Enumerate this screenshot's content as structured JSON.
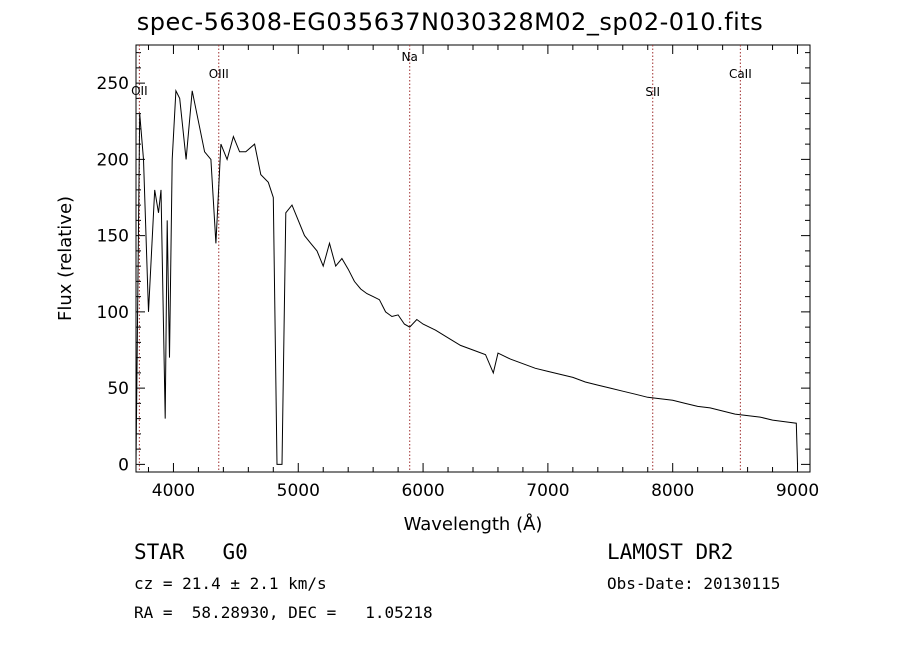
{
  "chart_data": {
    "type": "line",
    "title": "spec-56308-EG035637N030328M02_sp02-010.fits",
    "xlabel": "Wavelength (Å)",
    "ylabel": "Flux (relative)",
    "xlim": [
      3700,
      9100
    ],
    "ylim": [
      -5,
      275
    ],
    "x_ticks": [
      "4000",
      "5000",
      "6000",
      "7000",
      "8000",
      "9000"
    ],
    "y_ticks": [
      "0",
      "50",
      "100",
      "150",
      "200",
      "250"
    ],
    "grid": false,
    "lines": [
      {
        "label": "OII",
        "x": 3727
      },
      {
        "label": "OIII",
        "x": 4363
      },
      {
        "label": "Na",
        "x": 5893
      },
      {
        "label": "SII",
        "x": 7840
      },
      {
        "label": "CaII",
        "x": 8542
      }
    ],
    "series": [
      {
        "x": [
          3700,
          3730,
          3760,
          3800,
          3850,
          3880,
          3900,
          3934,
          3950,
          3968,
          3990,
          4020,
          4050,
          4101,
          4150,
          4200,
          4250,
          4300,
          4340,
          4380,
          4430,
          4480,
          4530,
          4580,
          4650,
          4700,
          4760,
          4800,
          4830,
          4861,
          4870,
          4900,
          4950,
          5000,
          5050,
          5100,
          5150,
          5200,
          5250,
          5300,
          5350,
          5400,
          5450,
          5500,
          5550,
          5600,
          5650,
          5700,
          5750,
          5800,
          5850,
          5893,
          5950,
          6000,
          6100,
          6200,
          6300,
          6400,
          6500,
          6563,
          6600,
          6700,
          6800,
          6900,
          7000,
          7100,
          7200,
          7300,
          7400,
          7500,
          7600,
          7700,
          7800,
          7900,
          8000,
          8100,
          8200,
          8300,
          8400,
          8500,
          8600,
          8700,
          8800,
          8900,
          8990,
          9000
        ],
        "y": [
          0,
          230,
          200,
          100,
          180,
          165,
          180,
          30,
          160,
          70,
          200,
          245,
          240,
          200,
          245,
          225,
          205,
          200,
          145,
          210,
          200,
          215,
          205,
          205,
          210,
          190,
          185,
          175,
          0,
          0,
          0,
          165,
          170,
          160,
          150,
          145,
          140,
          130,
          145,
          130,
          135,
          128,
          120,
          115,
          112,
          110,
          108,
          100,
          97,
          98,
          92,
          90,
          95,
          92,
          88,
          83,
          78,
          75,
          72,
          60,
          73,
          69,
          66,
          63,
          61,
          59,
          57,
          54,
          52,
          50,
          48,
          46,
          44,
          43,
          42,
          40,
          38,
          37,
          35,
          33,
          32,
          31,
          29,
          28,
          27,
          0
        ]
      }
    ]
  },
  "info": {
    "left_line1": "STAR   G0",
    "left_line2": "cz = 21.4 ± 2.1 km/s",
    "left_line3": "RA =  58.28930, DEC =   1.05218",
    "right_line1": "LAMOST DR2",
    "right_line2": "Obs-Date: 20130115"
  },
  "colors": {
    "spectrum": "#000000",
    "line_marker": "#a03030",
    "axis": "#000000"
  }
}
